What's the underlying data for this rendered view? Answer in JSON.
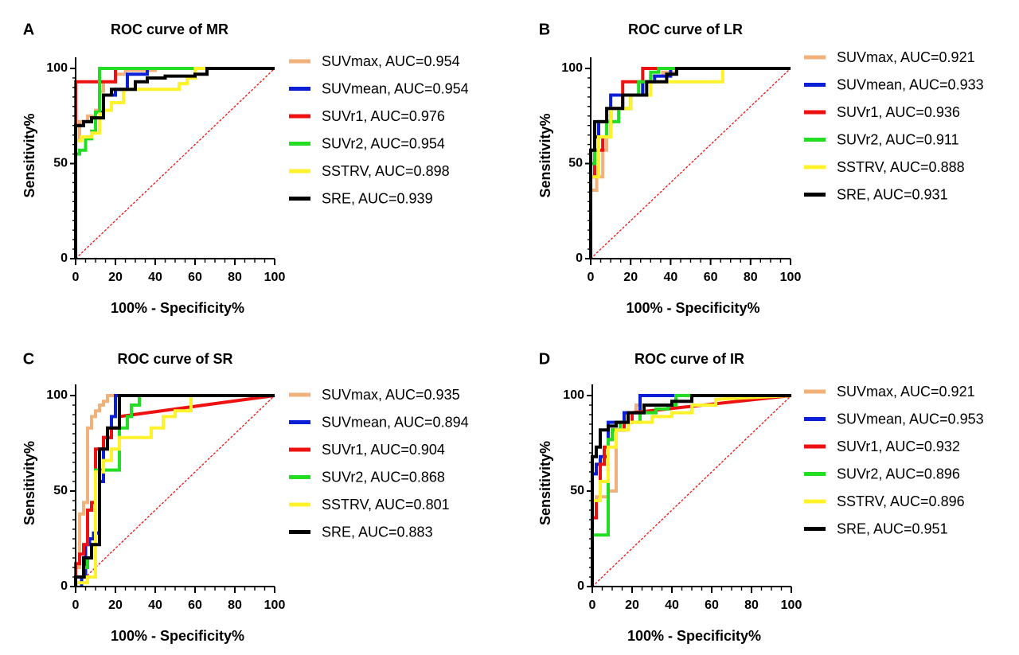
{
  "chart_data": [
    {
      "panel": "A",
      "type": "line",
      "title": "ROC curve of MR",
      "xlabel": "100% - Specificity%",
      "ylabel": "Sensitivity%",
      "xlim": [
        0,
        100
      ],
      "ylim": [
        0,
        100
      ],
      "xticks": [
        0,
        20,
        40,
        60,
        80,
        100
      ],
      "yticks": [
        0,
        50,
        100
      ],
      "reference_line": true,
      "legend_position": "right",
      "series": [
        {
          "name": "SUVmax, AUC=0.954",
          "color": "#F0B27A",
          "x": [
            0,
            0,
            2,
            2,
            6,
            6,
            10,
            10,
            12,
            12,
            14,
            14,
            20,
            20,
            25,
            25,
            40,
            40,
            100
          ],
          "y": [
            0,
            62,
            62,
            72,
            72,
            75,
            75,
            78,
            78,
            88,
            88,
            93,
            93,
            97,
            97,
            99,
            99,
            100,
            100
          ]
        },
        {
          "name": "SUVmean, AUC=0.954",
          "color": "#0B1FD6",
          "x": [
            0,
            0,
            4,
            4,
            8,
            8,
            12,
            12,
            14,
            14,
            20,
            20,
            26,
            26,
            36,
            36,
            100
          ],
          "y": [
            0,
            70,
            70,
            72,
            72,
            74,
            74,
            77,
            77,
            86,
            86,
            89,
            89,
            97,
            97,
            100,
            100
          ]
        },
        {
          "name": "SUVr1, AUC=0.976",
          "color": "#EE1111",
          "x": [
            0,
            0,
            20,
            20,
            100
          ],
          "y": [
            0,
            93,
            93,
            100,
            100
          ]
        },
        {
          "name": "SUVr2, AUC=0.954",
          "color": "#22DD22",
          "x": [
            0,
            0,
            2,
            2,
            5,
            5,
            8,
            8,
            10,
            10,
            12,
            12,
            100
          ],
          "y": [
            0,
            55,
            55,
            57,
            57,
            63,
            63,
            67,
            67,
            77,
            77,
            100,
            100
          ]
        },
        {
          "name": "SSTRV, AUC=0.898",
          "color": "#FFF12A",
          "x": [
            0,
            0,
            3,
            3,
            8,
            8,
            12,
            12,
            14,
            14,
            18,
            18,
            24,
            24,
            52,
            52,
            56,
            56,
            60,
            60,
            100
          ],
          "y": [
            0,
            62,
            62,
            64,
            64,
            66,
            66,
            76,
            76,
            78,
            78,
            82,
            82,
            89,
            89,
            92,
            92,
            95,
            95,
            100,
            100
          ]
        },
        {
          "name": "SRE, AUC=0.939",
          "color": "#000000",
          "x": [
            0,
            0,
            4,
            4,
            8,
            8,
            14,
            14,
            18,
            18,
            30,
            30,
            36,
            36,
            45,
            45,
            60,
            60,
            66,
            66,
            100
          ],
          "y": [
            0,
            70,
            70,
            72,
            72,
            74,
            74,
            86,
            86,
            89,
            89,
            93,
            93,
            95,
            95,
            96,
            96,
            97,
            97,
            100,
            100
          ]
        }
      ]
    },
    {
      "panel": "B",
      "type": "line",
      "title": "ROC curve of LR",
      "xlabel": "100% - Specificity%",
      "ylabel": "Sensitivity%",
      "xlim": [
        0,
        100
      ],
      "ylim": [
        0,
        100
      ],
      "xticks": [
        0,
        20,
        40,
        60,
        80,
        100
      ],
      "yticks": [
        0,
        50,
        100
      ],
      "reference_line": true,
      "legend_position": "right",
      "series": [
        {
          "name": "SUVmax, AUC=0.921",
          "color": "#F0B27A",
          "x": [
            0,
            0,
            3,
            3,
            6,
            6,
            8,
            8,
            10,
            10,
            20,
            20,
            26,
            26,
            30,
            30,
            36,
            36,
            43,
            43,
            100
          ],
          "y": [
            0,
            36,
            36,
            43,
            43,
            57,
            57,
            72,
            72,
            79,
            79,
            86,
            86,
            93,
            93,
            96,
            96,
            98,
            98,
            100,
            100
          ]
        },
        {
          "name": "SUVmean, AUC=0.933",
          "color": "#0B1FD6",
          "x": [
            0,
            0,
            2,
            2,
            4,
            4,
            10,
            10,
            26,
            26,
            32,
            32,
            40,
            40,
            100
          ],
          "y": [
            0,
            57,
            57,
            64,
            64,
            72,
            72,
            86,
            86,
            93,
            93,
            96,
            96,
            100,
            100
          ]
        },
        {
          "name": "SUVr1, AUC=0.936",
          "color": "#EE1111",
          "x": [
            0,
            0,
            2,
            2,
            6,
            6,
            10,
            10,
            16,
            16,
            26,
            26,
            100
          ],
          "y": [
            0,
            43,
            43,
            57,
            57,
            64,
            64,
            79,
            79,
            93,
            93,
            100,
            100
          ]
        },
        {
          "name": "SUVr2, AUC=0.911",
          "color": "#22DD22",
          "x": [
            0,
            0,
            2,
            2,
            4,
            4,
            8,
            8,
            14,
            14,
            20,
            20,
            24,
            24,
            30,
            30,
            34,
            34,
            100
          ],
          "y": [
            0,
            50,
            50,
            57,
            57,
            64,
            64,
            72,
            72,
            79,
            79,
            86,
            86,
            93,
            93,
            98,
            98,
            100,
            100
          ]
        },
        {
          "name": "SSTRV, AUC=0.888",
          "color": "#FFF12A",
          "x": [
            0,
            0,
            4,
            4,
            10,
            10,
            20,
            20,
            30,
            30,
            40,
            40,
            66,
            66,
            100
          ],
          "y": [
            0,
            43,
            43,
            64,
            64,
            79,
            79,
            86,
            86,
            93,
            93,
            93,
            93,
            100,
            100
          ]
        },
        {
          "name": "SRE, AUC=0.931",
          "color": "#000000",
          "x": [
            0,
            0,
            2,
            2,
            8,
            8,
            16,
            16,
            28,
            28,
            38,
            38,
            43,
            43,
            100
          ],
          "y": [
            0,
            57,
            57,
            72,
            72,
            79,
            79,
            86,
            86,
            93,
            93,
            97,
            97,
            100,
            100
          ]
        }
      ]
    },
    {
      "panel": "C",
      "type": "line",
      "title": "ROC curve of SR",
      "xlabel": "100% - Specificity%",
      "ylabel": "Sensitivity%",
      "xlim": [
        0,
        100
      ],
      "ylim": [
        0,
        100
      ],
      "xticks": [
        0,
        20,
        40,
        60,
        80,
        100
      ],
      "yticks": [
        0,
        50,
        100
      ],
      "reference_line": true,
      "legend_position": "right",
      "series": [
        {
          "name": "SUVmax, AUC=0.935",
          "color": "#F0B27A",
          "x": [
            0,
            0,
            2,
            2,
            4,
            4,
            6,
            6,
            8,
            8,
            10,
            10,
            12,
            12,
            14,
            14,
            16,
            16,
            100
          ],
          "y": [
            0,
            10,
            10,
            38,
            38,
            44,
            44,
            83,
            83,
            89,
            89,
            92,
            92,
            95,
            95,
            97,
            97,
            100,
            100
          ]
        },
        {
          "name": "SUVmean, AUC=0.894",
          "color": "#0B1FD6",
          "x": [
            3,
            3,
            5,
            5,
            7,
            7,
            9,
            9,
            12,
            12,
            14,
            14,
            18,
            18,
            20,
            20,
            100
          ],
          "y": [
            0,
            5,
            5,
            22,
            22,
            25,
            25,
            28,
            28,
            55,
            55,
            78,
            78,
            89,
            89,
            100,
            100
          ]
        },
        {
          "name": "SUVr1, AUC=0.904",
          "color": "#EE1111",
          "x": [
            0,
            0,
            2,
            2,
            4,
            4,
            6,
            6,
            8,
            8,
            10,
            10,
            14,
            14,
            18,
            18,
            22,
            22,
            100
          ],
          "y": [
            0,
            12,
            12,
            17,
            17,
            22,
            22,
            40,
            40,
            44,
            44,
            72,
            72,
            78,
            78,
            83,
            83,
            89,
            100
          ]
        },
        {
          "name": "SUVr2, AUC=0.868",
          "color": "#22DD22",
          "x": [
            0,
            0,
            4,
            4,
            6,
            6,
            8,
            8,
            10,
            10,
            22,
            22,
            26,
            26,
            28,
            28,
            32,
            32,
            100
          ],
          "y": [
            0,
            5,
            5,
            10,
            10,
            15,
            15,
            22,
            22,
            61,
            61,
            83,
            83,
            89,
            89,
            95,
            95,
            100,
            100
          ]
        },
        {
          "name": "SSTRV, AUC=0.801",
          "color": "#FFF12A",
          "x": [
            0,
            0,
            6,
            6,
            10,
            10,
            14,
            14,
            18,
            18,
            22,
            22,
            28,
            28,
            38,
            38,
            44,
            44,
            50,
            50,
            58,
            58,
            100
          ],
          "y": [
            0,
            2,
            2,
            5,
            5,
            60,
            60,
            66,
            66,
            72,
            72,
            78,
            78,
            78,
            78,
            83,
            83,
            89,
            89,
            92,
            92,
            100,
            100
          ]
        },
        {
          "name": "SRE, AUC=0.883",
          "color": "#000000",
          "x": [
            0,
            0,
            4,
            4,
            8,
            8,
            12,
            12,
            16,
            16,
            22,
            22,
            100
          ],
          "y": [
            0,
            5,
            5,
            15,
            15,
            22,
            22,
            72,
            72,
            83,
            83,
            100,
            100
          ]
        }
      ]
    },
    {
      "panel": "D",
      "type": "line",
      "title": "ROC curve of IR",
      "xlabel": "100% - Specificity%",
      "ylabel": "Sensitivity%",
      "xlim": [
        0,
        100
      ],
      "ylim": [
        0,
        100
      ],
      "xticks": [
        0,
        20,
        40,
        60,
        80,
        100
      ],
      "yticks": [
        0,
        50,
        100
      ],
      "reference_line": true,
      "legend_position": "right",
      "series": [
        {
          "name": "SUVmax, AUC=0.921",
          "color": "#F0B27A",
          "x": [
            0,
            0,
            2,
            2,
            8,
            8,
            10,
            10,
            12,
            12,
            16,
            16,
            20,
            20,
            22,
            22,
            24,
            24,
            100
          ],
          "y": [
            0,
            45,
            45,
            47,
            47,
            50,
            50,
            50,
            50,
            82,
            82,
            86,
            86,
            91,
            91,
            95,
            95,
            100,
            100
          ]
        },
        {
          "name": "SUVmean, AUC=0.953",
          "color": "#0B1FD6",
          "x": [
            0,
            0,
            2,
            2,
            4,
            4,
            8,
            8,
            16,
            16,
            24,
            24,
            100
          ],
          "y": [
            0,
            59,
            59,
            64,
            64,
            68,
            68,
            86,
            86,
            91,
            91,
            100,
            100
          ]
        },
        {
          "name": "SUVr1, AUC=0.932",
          "color": "#EE1111",
          "x": [
            0,
            0,
            2,
            2,
            4,
            4,
            6,
            6,
            8,
            8,
            10,
            10,
            16,
            16,
            20,
            20,
            100
          ],
          "y": [
            0,
            36,
            36,
            45,
            45,
            64,
            64,
            73,
            73,
            77,
            77,
            82,
            82,
            86,
            86,
            91,
            100
          ]
        },
        {
          "name": "SUVr2, AUC=0.896",
          "color": "#22DD22",
          "x": [
            0,
            0,
            2,
            2,
            8,
            8,
            10,
            10,
            14,
            14,
            24,
            24,
            32,
            32,
            38,
            38,
            42,
            42,
            100
          ],
          "y": [
            0,
            27,
            27,
            27,
            27,
            77,
            77,
            82,
            82,
            86,
            86,
            91,
            91,
            93,
            93,
            95,
            95,
            100,
            100
          ]
        },
        {
          "name": "SSTRV, AUC=0.896",
          "color": "#FFF12A",
          "x": [
            0,
            0,
            4,
            4,
            8,
            8,
            12,
            12,
            18,
            18,
            30,
            30,
            40,
            40,
            50,
            50,
            62,
            62,
            100
          ],
          "y": [
            0,
            45,
            45,
            55,
            55,
            73,
            73,
            82,
            82,
            86,
            86,
            89,
            89,
            91,
            91,
            95,
            95,
            98,
            100
          ]
        },
        {
          "name": "SRE, AUC=0.951",
          "color": "#000000",
          "x": [
            0,
            0,
            2,
            2,
            4,
            4,
            8,
            8,
            12,
            12,
            18,
            18,
            26,
            26,
            40,
            40,
            50,
            50,
            100
          ],
          "y": [
            0,
            68,
            68,
            73,
            73,
            82,
            82,
            84,
            84,
            86,
            86,
            91,
            91,
            95,
            95,
            97,
            97,
            100,
            100
          ]
        }
      ]
    }
  ]
}
